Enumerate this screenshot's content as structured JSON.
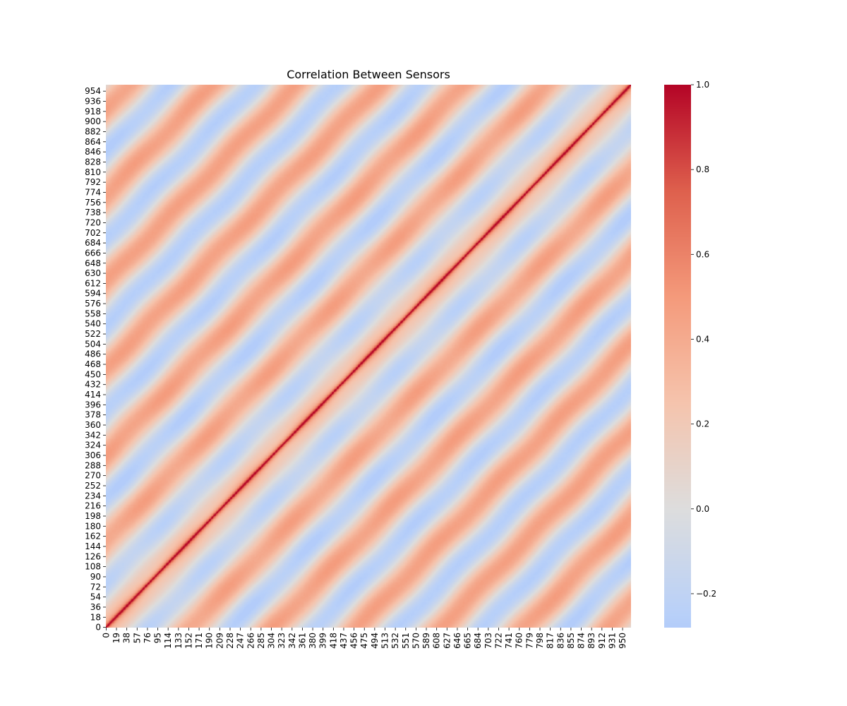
{
  "chart_data": {
    "type": "heatmap",
    "title": "Correlation Between Sensors",
    "xlabel": "",
    "ylabel": "",
    "n": 966,
    "x_ticks": [
      0,
      19,
      38,
      57,
      76,
      95,
      114,
      133,
      152,
      171,
      190,
      209,
      228,
      247,
      266,
      285,
      304,
      323,
      342,
      361,
      380,
      399,
      418,
      437,
      456,
      475,
      494,
      513,
      532,
      551,
      570,
      589,
      608,
      627,
      646,
      665,
      684,
      703,
      722,
      741,
      760,
      779,
      798,
      817,
      836,
      855,
      874,
      893,
      912,
      931,
      950
    ],
    "y_ticks": [
      0,
      18,
      36,
      54,
      72,
      90,
      108,
      126,
      144,
      162,
      180,
      198,
      216,
      234,
      252,
      270,
      288,
      306,
      324,
      342,
      360,
      378,
      396,
      414,
      432,
      450,
      468,
      486,
      504,
      522,
      540,
      558,
      576,
      594,
      612,
      630,
      648,
      666,
      684,
      702,
      720,
      738,
      756,
      774,
      792,
      810,
      828,
      846,
      864,
      882,
      900,
      918,
      936,
      954
    ],
    "value_range": [
      -0.28,
      1.0
    ],
    "colormap": "coolwarm",
    "colormap_center": 0.0,
    "colorbar_ticks": [
      -0.2,
      0.0,
      0.2,
      0.4,
      0.6,
      0.8,
      1.0
    ],
    "colorbar_tick_labels": [
      "−0.2",
      "0.0",
      "0.2",
      "0.4",
      "0.6",
      "0.8",
      "1.0"
    ],
    "pattern": {
      "description_values": "banded Toeplitz-like correlation: r = 1 on the diagonal, periodic secondary bands of r ≈ 0.45 every ~154 sensors, minima ≈ -0.25 between bands",
      "band_period": 154,
      "secondary_band_peak": 0.45,
      "trough_value": -0.25
    }
  }
}
